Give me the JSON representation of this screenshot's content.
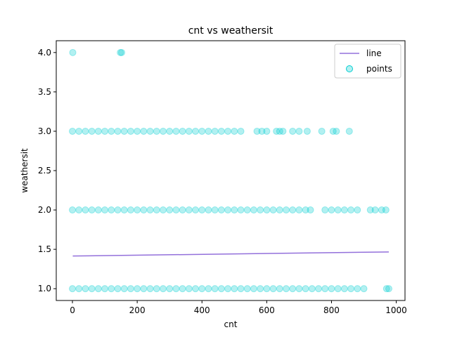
{
  "chart_data": {
    "type": "scatter",
    "title": "cnt vs weathersit",
    "xlabel": "cnt",
    "ylabel": "weathersit",
    "xlim": [
      -50,
      1027
    ],
    "ylim": [
      0.85,
      4.15
    ],
    "x_ticks": [
      0,
      200,
      400,
      600,
      800,
      1000
    ],
    "y_ticks": [
      1.0,
      1.5,
      2.0,
      2.5,
      3.0,
      3.5,
      4.0
    ],
    "x_tick_labels": [
      "0",
      "200",
      "400",
      "600",
      "800",
      "1000"
    ],
    "y_tick_labels": [
      "1.0",
      "1.5",
      "2.0",
      "2.5",
      "3.0",
      "3.5",
      "4.0"
    ],
    "grid": false,
    "legend_position": "top-right",
    "colors": {
      "line": "#9370db",
      "points": "#00ced1"
    },
    "series": [
      {
        "name": "line",
        "kind": "line",
        "x": [
          1,
          977
        ],
        "y": [
          1.415,
          1.467
        ]
      },
      {
        "name": "points",
        "kind": "scatter",
        "points": [
          [
            1,
            4.0
          ],
          [
            148,
            4.0
          ],
          [
            152,
            4.0
          ],
          [
            0,
            3.0
          ],
          [
            20,
            3.0
          ],
          [
            40,
            3.0
          ],
          [
            60,
            3.0
          ],
          [
            80,
            3.0
          ],
          [
            100,
            3.0
          ],
          [
            120,
            3.0
          ],
          [
            140,
            3.0
          ],
          [
            160,
            3.0
          ],
          [
            180,
            3.0
          ],
          [
            200,
            3.0
          ],
          [
            220,
            3.0
          ],
          [
            240,
            3.0
          ],
          [
            260,
            3.0
          ],
          [
            280,
            3.0
          ],
          [
            300,
            3.0
          ],
          [
            320,
            3.0
          ],
          [
            340,
            3.0
          ],
          [
            360,
            3.0
          ],
          [
            380,
            3.0
          ],
          [
            400,
            3.0
          ],
          [
            420,
            3.0
          ],
          [
            440,
            3.0
          ],
          [
            460,
            3.0
          ],
          [
            480,
            3.0
          ],
          [
            500,
            3.0
          ],
          [
            520,
            3.0
          ],
          [
            570,
            3.0
          ],
          [
            585,
            3.0
          ],
          [
            600,
            3.0
          ],
          [
            630,
            3.0
          ],
          [
            640,
            3.0
          ],
          [
            650,
            3.0
          ],
          [
            680,
            3.0
          ],
          [
            700,
            3.0
          ],
          [
            725,
            3.0
          ],
          [
            770,
            3.0
          ],
          [
            805,
            3.0
          ],
          [
            815,
            3.0
          ],
          [
            855,
            3.0
          ],
          [
            0,
            2.0
          ],
          [
            20,
            2.0
          ],
          [
            40,
            2.0
          ],
          [
            60,
            2.0
          ],
          [
            80,
            2.0
          ],
          [
            100,
            2.0
          ],
          [
            120,
            2.0
          ],
          [
            140,
            2.0
          ],
          [
            160,
            2.0
          ],
          [
            180,
            2.0
          ],
          [
            200,
            2.0
          ],
          [
            220,
            2.0
          ],
          [
            240,
            2.0
          ],
          [
            260,
            2.0
          ],
          [
            280,
            2.0
          ],
          [
            300,
            2.0
          ],
          [
            320,
            2.0
          ],
          [
            340,
            2.0
          ],
          [
            360,
            2.0
          ],
          [
            380,
            2.0
          ],
          [
            400,
            2.0
          ],
          [
            420,
            2.0
          ],
          [
            440,
            2.0
          ],
          [
            460,
            2.0
          ],
          [
            480,
            2.0
          ],
          [
            500,
            2.0
          ],
          [
            520,
            2.0
          ],
          [
            540,
            2.0
          ],
          [
            560,
            2.0
          ],
          [
            580,
            2.0
          ],
          [
            600,
            2.0
          ],
          [
            620,
            2.0
          ],
          [
            640,
            2.0
          ],
          [
            660,
            2.0
          ],
          [
            680,
            2.0
          ],
          [
            700,
            2.0
          ],
          [
            720,
            2.0
          ],
          [
            735,
            2.0
          ],
          [
            780,
            2.0
          ],
          [
            800,
            2.0
          ],
          [
            820,
            2.0
          ],
          [
            840,
            2.0
          ],
          [
            860,
            2.0
          ],
          [
            880,
            2.0
          ],
          [
            920,
            2.0
          ],
          [
            935,
            2.0
          ],
          [
            955,
            2.0
          ],
          [
            968,
            2.0
          ],
          [
            0,
            1.0
          ],
          [
            20,
            1.0
          ],
          [
            40,
            1.0
          ],
          [
            60,
            1.0
          ],
          [
            80,
            1.0
          ],
          [
            100,
            1.0
          ],
          [
            120,
            1.0
          ],
          [
            140,
            1.0
          ],
          [
            160,
            1.0
          ],
          [
            180,
            1.0
          ],
          [
            200,
            1.0
          ],
          [
            220,
            1.0
          ],
          [
            240,
            1.0
          ],
          [
            260,
            1.0
          ],
          [
            280,
            1.0
          ],
          [
            300,
            1.0
          ],
          [
            320,
            1.0
          ],
          [
            340,
            1.0
          ],
          [
            360,
            1.0
          ],
          [
            380,
            1.0
          ],
          [
            400,
            1.0
          ],
          [
            420,
            1.0
          ],
          [
            440,
            1.0
          ],
          [
            460,
            1.0
          ],
          [
            480,
            1.0
          ],
          [
            500,
            1.0
          ],
          [
            520,
            1.0
          ],
          [
            540,
            1.0
          ],
          [
            560,
            1.0
          ],
          [
            580,
            1.0
          ],
          [
            600,
            1.0
          ],
          [
            620,
            1.0
          ],
          [
            640,
            1.0
          ],
          [
            660,
            1.0
          ],
          [
            680,
            1.0
          ],
          [
            700,
            1.0
          ],
          [
            720,
            1.0
          ],
          [
            740,
            1.0
          ],
          [
            760,
            1.0
          ],
          [
            780,
            1.0
          ],
          [
            800,
            1.0
          ],
          [
            820,
            1.0
          ],
          [
            840,
            1.0
          ],
          [
            860,
            1.0
          ],
          [
            880,
            1.0
          ],
          [
            900,
            1.0
          ],
          [
            970,
            1.0
          ],
          [
            977,
            1.0
          ]
        ]
      }
    ]
  }
}
